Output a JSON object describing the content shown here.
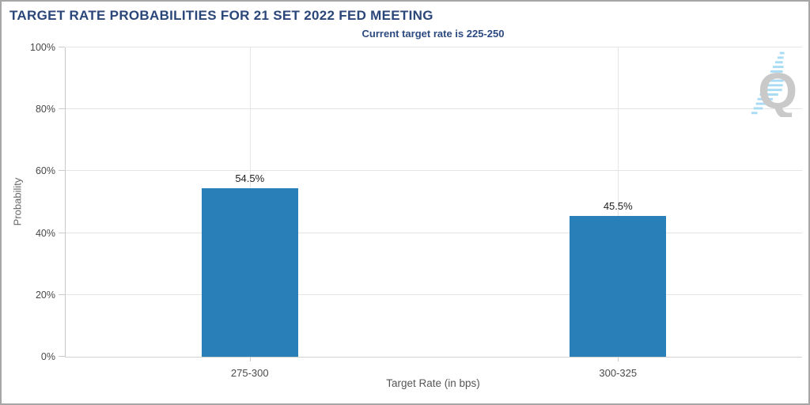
{
  "window": {
    "background": "#ffffff",
    "border_color": "#a6a6a6"
  },
  "header": {
    "title": "TARGET RATE PROBABILITIES FOR 21 SET 2022 FED MEETING",
    "subtitle": "Current target rate is 225-250",
    "title_color": "#2b4679"
  },
  "logo": {
    "letter": "Q",
    "letter_color": "#c9c9c9",
    "stripe_color": "#a9dcf4"
  },
  "chart_data": {
    "type": "bar",
    "title": "TARGET RATE PROBABILITIES FOR 21 SET 2022 FED MEETING",
    "subtitle": "Current target rate is 225-250",
    "categories": [
      "275-300",
      "300-325"
    ],
    "values": [
      54.5,
      45.5
    ],
    "value_labels": [
      "54.5%",
      "45.5%"
    ],
    "xlabel": "Target Rate (in bps)",
    "ylabel": "Probability",
    "ylim": [
      0,
      100
    ],
    "yticks": [
      0,
      20,
      40,
      60,
      80,
      100
    ],
    "ytick_labels": [
      "0%",
      "20%",
      "40%",
      "60%",
      "80%",
      "100%"
    ],
    "bar_color": "#2980b9",
    "grid": true,
    "gridline_color": "#e4e4e4",
    "legend": false
  }
}
